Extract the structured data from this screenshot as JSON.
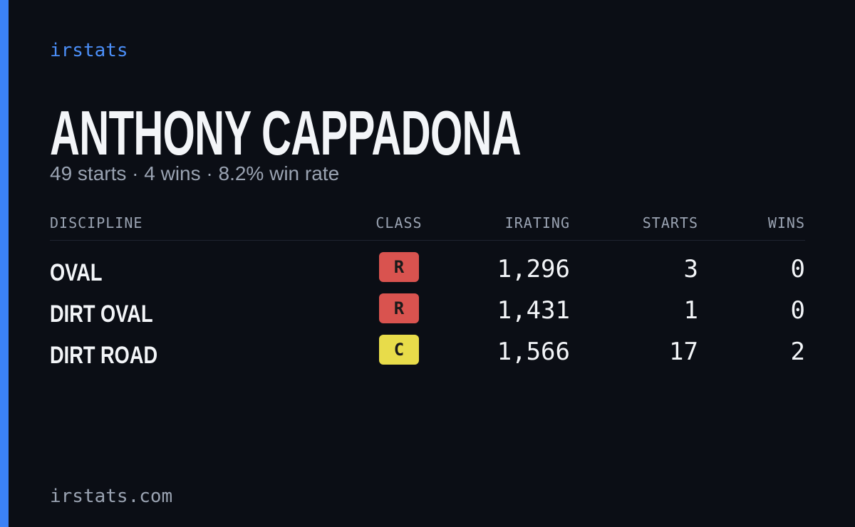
{
  "brand": "irstats",
  "driver": {
    "name": "ANTHONY CAPPADONA",
    "summary": "49 starts · 4 wins · 8.2% win rate"
  },
  "table": {
    "headers": [
      "DISCIPLINE",
      "CLASS",
      "IRATING",
      "STARTS",
      "WINS"
    ],
    "rows": [
      {
        "discipline": "OVAL",
        "class": "R",
        "class_color": "#d9534f",
        "irating": "1,296",
        "starts": "3",
        "wins": "0"
      },
      {
        "discipline": "DIRT OVAL",
        "class": "R",
        "class_color": "#d9534f",
        "irating": "1,431",
        "starts": "1",
        "wins": "0"
      },
      {
        "discipline": "DIRT ROAD",
        "class": "C",
        "class_color": "#e8dc4a",
        "irating": "1,566",
        "starts": "17",
        "wins": "2"
      }
    ]
  },
  "footer": "irstats.com"
}
